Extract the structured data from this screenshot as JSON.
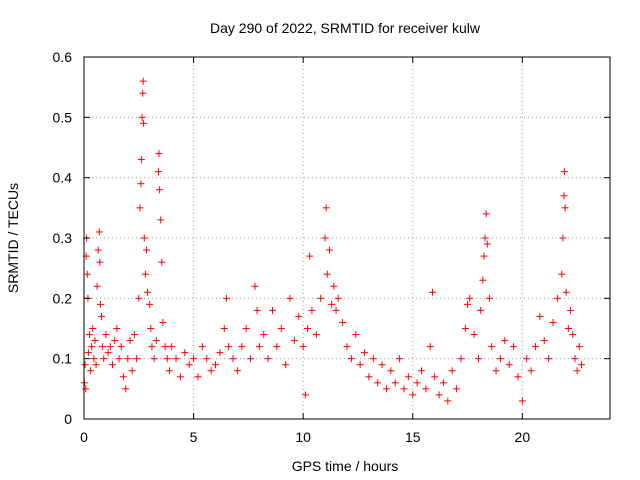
{
  "chart_data": {
    "type": "scatter",
    "title": "Day 290 of 2022, SRMTID for receiver kulw",
    "xlabel": "GPS time / hours",
    "ylabel": "SRMTID / TECUs",
    "xlim": [
      0,
      24
    ],
    "ylim": [
      0,
      0.6
    ],
    "xticks": [
      0,
      5,
      10,
      15,
      20
    ],
    "xtick_labels": [
      "0",
      "5",
      "10",
      "15",
      "20"
    ],
    "yticks": [
      0,
      0.1,
      0.2,
      0.3,
      0.4,
      0.5,
      0.6
    ],
    "ytick_labels": [
      "0",
      "0.1",
      "0.2",
      "0.3",
      "0.4",
      "0.5",
      "0.6"
    ],
    "grid": true,
    "marker": "+",
    "color": "#ff0000",
    "series": [
      {
        "name": "SRMTID",
        "points": [
          [
            0.02,
            0.06
          ],
          [
            0.05,
            0.09
          ],
          [
            0.08,
            0.05
          ],
          [
            0.1,
            0.27
          ],
          [
            0.12,
            0.3
          ],
          [
            0.15,
            0.24
          ],
          [
            0.18,
            0.2
          ],
          [
            0.2,
            0.11
          ],
          [
            0.25,
            0.14
          ],
          [
            0.3,
            0.08
          ],
          [
            0.35,
            0.12
          ],
          [
            0.4,
            0.15
          ],
          [
            0.45,
            0.1
          ],
          [
            0.5,
            0.13
          ],
          [
            0.55,
            0.09
          ],
          [
            0.6,
            0.22
          ],
          [
            0.65,
            0.28
          ],
          [
            0.7,
            0.31
          ],
          [
            0.72,
            0.26
          ],
          [
            0.75,
            0.19
          ],
          [
            0.8,
            0.17
          ],
          [
            0.85,
            0.12
          ],
          [
            0.9,
            0.1
          ],
          [
            1.0,
            0.14
          ],
          [
            1.1,
            0.11
          ],
          [
            1.2,
            0.12
          ],
          [
            1.3,
            0.09
          ],
          [
            1.4,
            0.13
          ],
          [
            1.5,
            0.15
          ],
          [
            1.6,
            0.1
          ],
          [
            1.7,
            0.12
          ],
          [
            1.8,
            0.07
          ],
          [
            1.9,
            0.05
          ],
          [
            2.0,
            0.1
          ],
          [
            2.1,
            0.13
          ],
          [
            2.2,
            0.08
          ],
          [
            2.3,
            0.14
          ],
          [
            2.4,
            0.1
          ],
          [
            2.5,
            0.2
          ],
          [
            2.55,
            0.35
          ],
          [
            2.6,
            0.39
          ],
          [
            2.62,
            0.43
          ],
          [
            2.65,
            0.5
          ],
          [
            2.68,
            0.54
          ],
          [
            2.7,
            0.56
          ],
          [
            2.72,
            0.49
          ],
          [
            2.75,
            0.3
          ],
          [
            2.8,
            0.24
          ],
          [
            2.85,
            0.28
          ],
          [
            2.9,
            0.21
          ],
          [
            3.0,
            0.19
          ],
          [
            3.05,
            0.15
          ],
          [
            3.1,
            0.12
          ],
          [
            3.2,
            0.1
          ],
          [
            3.3,
            0.13
          ],
          [
            3.4,
            0.41
          ],
          [
            3.42,
            0.44
          ],
          [
            3.45,
            0.38
          ],
          [
            3.5,
            0.33
          ],
          [
            3.55,
            0.26
          ],
          [
            3.6,
            0.16
          ],
          [
            3.7,
            0.12
          ],
          [
            3.8,
            0.1
          ],
          [
            3.9,
            0.08
          ],
          [
            4.0,
            0.12
          ],
          [
            4.2,
            0.1
          ],
          [
            4.4,
            0.07
          ],
          [
            4.6,
            0.11
          ],
          [
            4.8,
            0.09
          ],
          [
            5.0,
            0.1
          ],
          [
            5.2,
            0.07
          ],
          [
            5.4,
            0.12
          ],
          [
            5.6,
            0.1
          ],
          [
            5.8,
            0.08
          ],
          [
            6.0,
            0.09
          ],
          [
            6.2,
            0.11
          ],
          [
            6.4,
            0.15
          ],
          [
            6.5,
            0.2
          ],
          [
            6.6,
            0.12
          ],
          [
            6.8,
            0.1
          ],
          [
            7.0,
            0.08
          ],
          [
            7.2,
            0.12
          ],
          [
            7.4,
            0.15
          ],
          [
            7.6,
            0.1
          ],
          [
            7.8,
            0.22
          ],
          [
            7.9,
            0.18
          ],
          [
            8.0,
            0.12
          ],
          [
            8.2,
            0.14
          ],
          [
            8.4,
            0.1
          ],
          [
            8.6,
            0.18
          ],
          [
            8.8,
            0.12
          ],
          [
            9.0,
            0.15
          ],
          [
            9.2,
            0.09
          ],
          [
            9.4,
            0.2
          ],
          [
            9.6,
            0.13
          ],
          [
            9.8,
            0.17
          ],
          [
            10.0,
            0.12
          ],
          [
            10.1,
            0.04
          ],
          [
            10.2,
            0.15
          ],
          [
            10.3,
            0.27
          ],
          [
            10.4,
            0.18
          ],
          [
            10.6,
            0.14
          ],
          [
            10.8,
            0.2
          ],
          [
            11.0,
            0.3
          ],
          [
            11.05,
            0.35
          ],
          [
            11.1,
            0.24
          ],
          [
            11.2,
            0.28
          ],
          [
            11.3,
            0.19
          ],
          [
            11.4,
            0.22
          ],
          [
            11.5,
            0.18
          ],
          [
            11.6,
            0.2
          ],
          [
            11.8,
            0.16
          ],
          [
            12.0,
            0.12
          ],
          [
            12.2,
            0.1
          ],
          [
            12.4,
            0.14
          ],
          [
            12.6,
            0.09
          ],
          [
            12.8,
            0.11
          ],
          [
            13.0,
            0.07
          ],
          [
            13.2,
            0.1
          ],
          [
            13.4,
            0.06
          ],
          [
            13.6,
            0.09
          ],
          [
            13.8,
            0.05
          ],
          [
            14.0,
            0.08
          ],
          [
            14.2,
            0.06
          ],
          [
            14.4,
            0.1
          ],
          [
            14.6,
            0.05
          ],
          [
            14.8,
            0.07
          ],
          [
            15.0,
            0.04
          ],
          [
            15.2,
            0.06
          ],
          [
            15.4,
            0.08
          ],
          [
            15.6,
            0.05
          ],
          [
            15.8,
            0.12
          ],
          [
            15.9,
            0.21
          ],
          [
            16.0,
            0.07
          ],
          [
            16.2,
            0.04
          ],
          [
            16.4,
            0.06
          ],
          [
            16.6,
            0.03
          ],
          [
            16.8,
            0.08
          ],
          [
            17.0,
            0.05
          ],
          [
            17.2,
            0.1
          ],
          [
            17.4,
            0.15
          ],
          [
            17.5,
            0.19
          ],
          [
            17.6,
            0.2
          ],
          [
            17.8,
            0.14
          ],
          [
            18.0,
            0.1
          ],
          [
            18.1,
            0.18
          ],
          [
            18.2,
            0.23
          ],
          [
            18.25,
            0.27
          ],
          [
            18.3,
            0.3
          ],
          [
            18.35,
            0.34
          ],
          [
            18.4,
            0.29
          ],
          [
            18.5,
            0.2
          ],
          [
            18.6,
            0.12
          ],
          [
            18.8,
            0.08
          ],
          [
            19.0,
            0.1
          ],
          [
            19.2,
            0.13
          ],
          [
            19.4,
            0.09
          ],
          [
            19.6,
            0.12
          ],
          [
            19.8,
            0.07
          ],
          [
            20.0,
            0.03
          ],
          [
            20.2,
            0.1
          ],
          [
            20.4,
            0.08
          ],
          [
            20.6,
            0.12
          ],
          [
            20.8,
            0.17
          ],
          [
            21.0,
            0.13
          ],
          [
            21.2,
            0.1
          ],
          [
            21.4,
            0.16
          ],
          [
            21.6,
            0.2
          ],
          [
            21.8,
            0.24
          ],
          [
            21.85,
            0.3
          ],
          [
            21.9,
            0.37
          ],
          [
            21.92,
            0.41
          ],
          [
            21.95,
            0.35
          ],
          [
            22.0,
            0.21
          ],
          [
            22.1,
            0.15
          ],
          [
            22.2,
            0.18
          ],
          [
            22.3,
            0.14
          ],
          [
            22.4,
            0.1
          ],
          [
            22.5,
            0.08
          ],
          [
            22.6,
            0.12
          ],
          [
            22.7,
            0.09
          ]
        ]
      }
    ]
  }
}
